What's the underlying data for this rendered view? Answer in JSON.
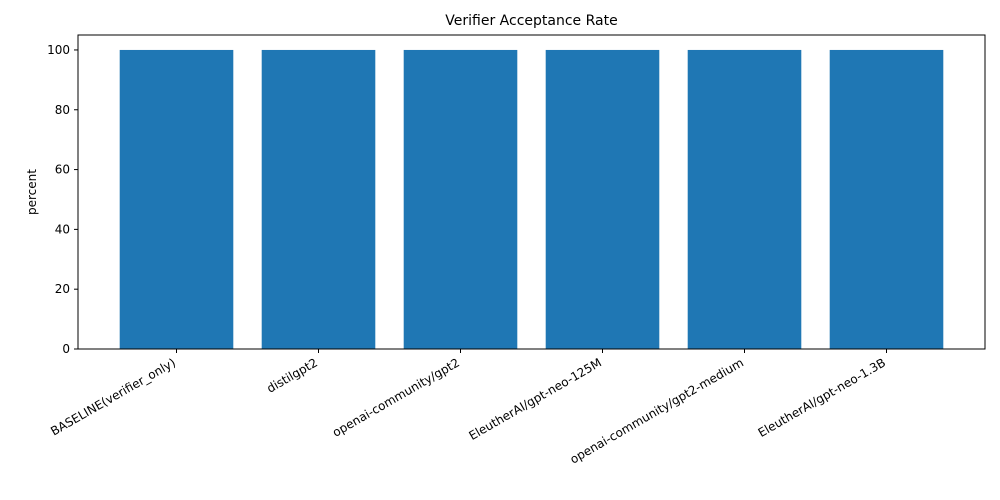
{
  "chart_data": {
    "type": "bar",
    "title": "Verifier Acceptance Rate",
    "xlabel": "",
    "ylabel": "percent",
    "categories": [
      "BASELINE(verifier_only)",
      "distilgpt2",
      "openai-community/gpt2",
      "EleutherAI/gpt-neo-125M",
      "openai-community/gpt2-medium",
      "EleutherAI/gpt-neo-1.3B"
    ],
    "values": [
      100,
      100,
      100,
      100,
      100,
      100
    ],
    "ylim": [
      0,
      105
    ],
    "yticks": [
      "0",
      "20",
      "40",
      "60",
      "80",
      "100"
    ],
    "bar_color": "#1f77b4",
    "grid": false,
    "legend": "none"
  }
}
